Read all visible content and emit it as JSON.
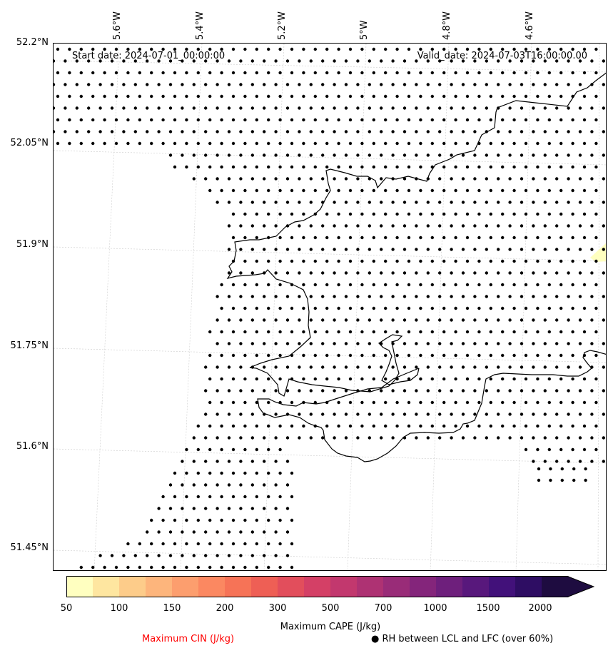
{
  "header": {
    "start_date": "Start date: 2024-07-01_00:00:00",
    "valid_date": "Valid_date: 2024-07-03T16:00:00.00"
  },
  "axes": {
    "lat_labels": [
      "52.2°N",
      "52.05°N",
      "51.9°N",
      "51.75°N",
      "51.6°N",
      "51.45°N"
    ],
    "lon_labels": [
      "5.6°W",
      "5.4°W",
      "5.2°W",
      "5°W",
      "4.8°W",
      "4.6°W"
    ]
  },
  "colorbar": {
    "title": "Maximum CAPE (J/kg)",
    "ticks": [
      "50",
      "100",
      "150",
      "200",
      "300",
      "500",
      "700",
      "1000",
      "1500",
      "2000"
    ],
    "colors": [
      "#ffffc0",
      "#fee6a0",
      "#fdcc8a",
      "#fdb57c",
      "#fc9e6e",
      "#fb8861",
      "#f67357",
      "#ee5f55",
      "#e24e5c",
      "#d44066",
      "#c2386e",
      "#ae3273",
      "#992c78",
      "#84257b",
      "#6e1f7c",
      "#58187c",
      "#42117a",
      "#2e0d63",
      "#1e0c40"
    ]
  },
  "legend": {
    "cin_label": "Maximum CIN (J/kg)",
    "rh_label": "● RH between LCL and LFC (over 60%)",
    "cin_color": "#ff0000"
  }
}
